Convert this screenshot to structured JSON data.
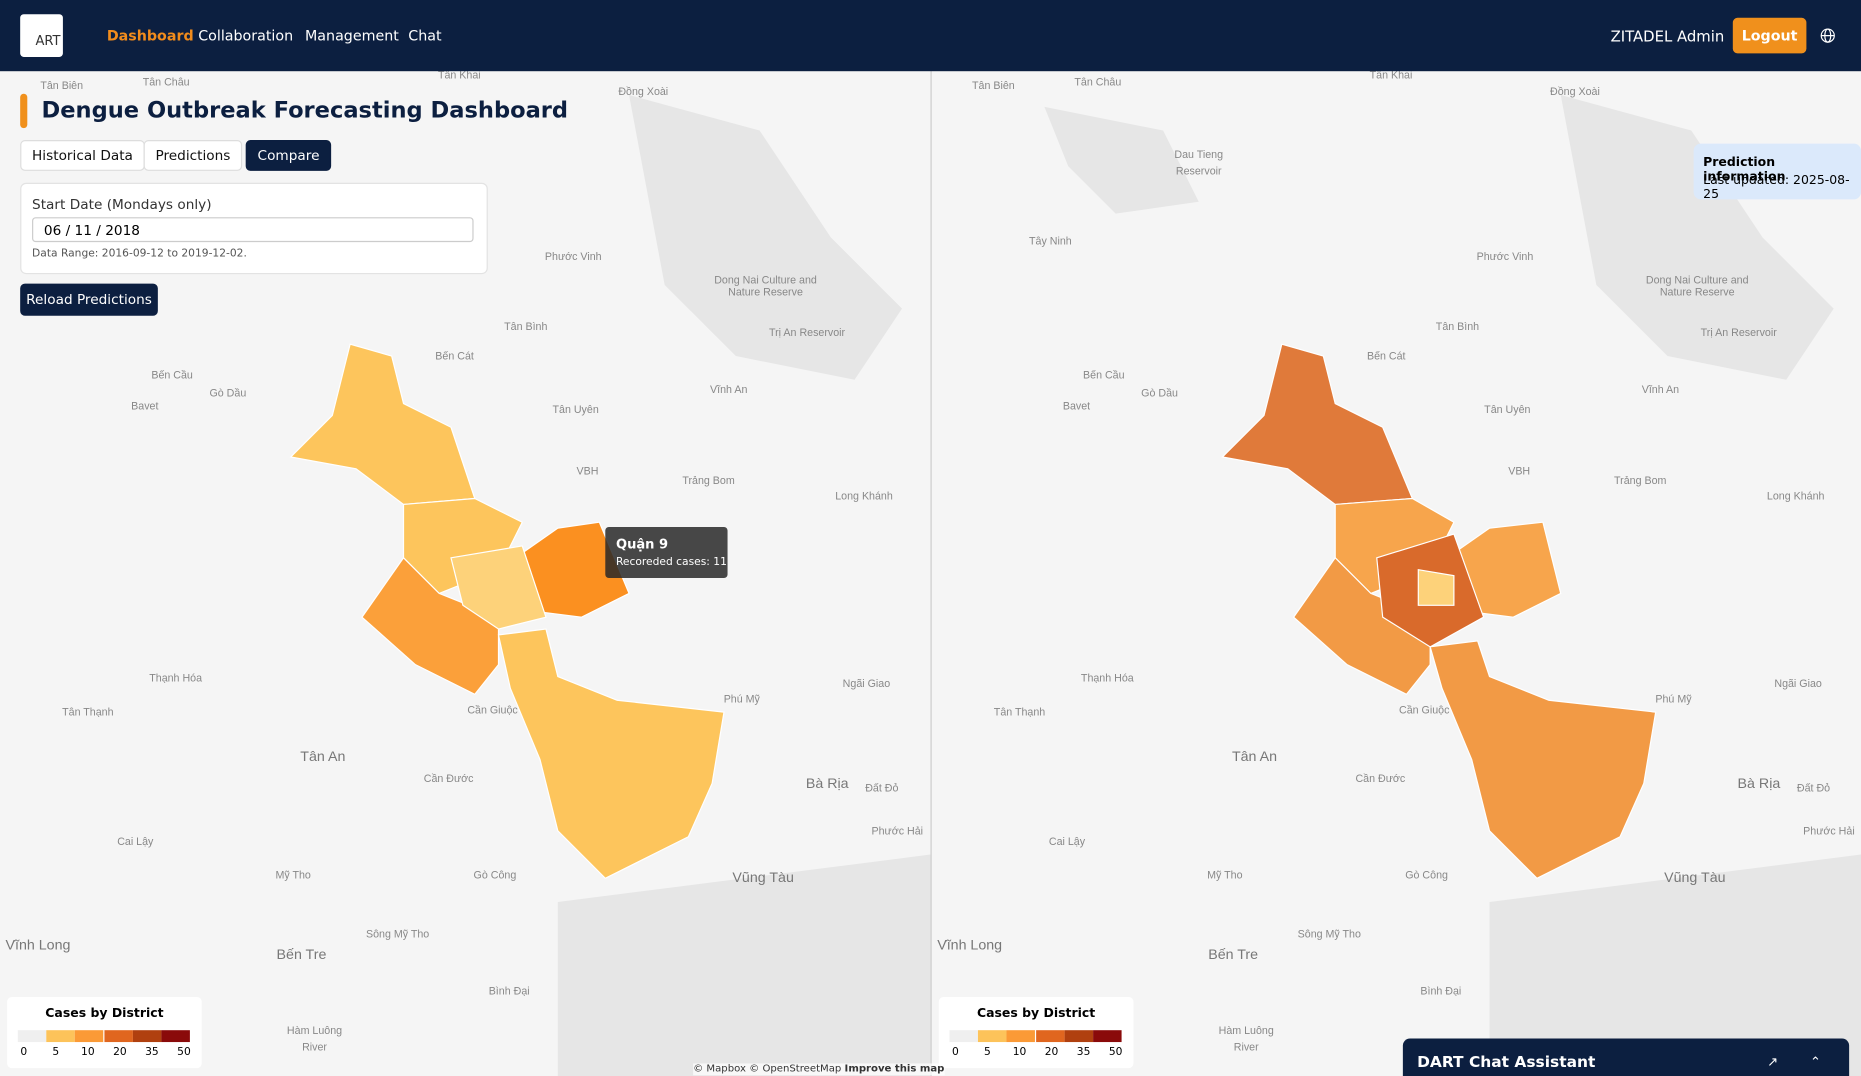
{
  "header": {
    "logo": "ART",
    "nav": [
      "Dashboard",
      "Collaboration",
      "Management",
      "Chat"
    ],
    "user": "ZITADEL Admin",
    "logout": "Logout"
  },
  "page": {
    "title": "Dengue Outbreak Forecasting Dashboard",
    "tabs": [
      "Historical Data",
      "Predictions",
      "Compare"
    ],
    "date_label": "Start Date (Mondays only)",
    "date_value": "06 / 11 / 2018",
    "date_range": "Data Range: 2016-09-12 to 2019-12-02.",
    "reload": "Reload Predictions"
  },
  "tooltip": {
    "title": "Quận 9",
    "text": "Recoreded cases: 11"
  },
  "prediction_info": {
    "title": "Prediction information",
    "updated": "Last updated: 2025-08-25"
  },
  "legend": {
    "title": "Cases by District",
    "ticks": [
      0,
      5,
      10,
      20,
      35,
      50
    ],
    "colors": [
      "#efefef",
      "#fdc35a",
      "#fb9a36",
      "#e0661f",
      "#b0400f",
      "#8a0a0a"
    ]
  },
  "attribution": {
    "text": "© Mapbox © OpenStreetMap",
    "link": "Improve this map"
  },
  "chat": {
    "title": "DART Chat Assistant"
  },
  "places": [
    "Tân Biên",
    "Tân Châu",
    "Tân Khai",
    "Đồng Xoài",
    "Phước Vinh",
    "Dong Nai Culture and",
    "Nature Reserve",
    "Tân Bình",
    "Trị An Reservoir",
    "Bến Cát",
    "Bến Cầu",
    "Gò Dầu",
    "Bavet",
    "Vĩnh An",
    "Tân Uyên",
    "VBH",
    "Trảng Bom",
    "Long Khánh",
    "Thạnh Hóa",
    "Tân Thạnh",
    "Cần Giuộc",
    "Phú Mỹ",
    "Ngãi Giao",
    "Tân An",
    "Cần Đước",
    "Bà Rịa",
    "Đất Đỏ",
    "Cai Lậy",
    "Mỹ Tho",
    "Gò Công",
    "Phước Hải",
    "Vũng Tàu",
    "Vĩnh Long",
    "Bến Tre",
    "Sông Mỹ Tho",
    "Bình Đại",
    "Hàm Luông",
    "River",
    "Tây Ninh",
    "Dau Tieng",
    "Reservoir"
  ]
}
